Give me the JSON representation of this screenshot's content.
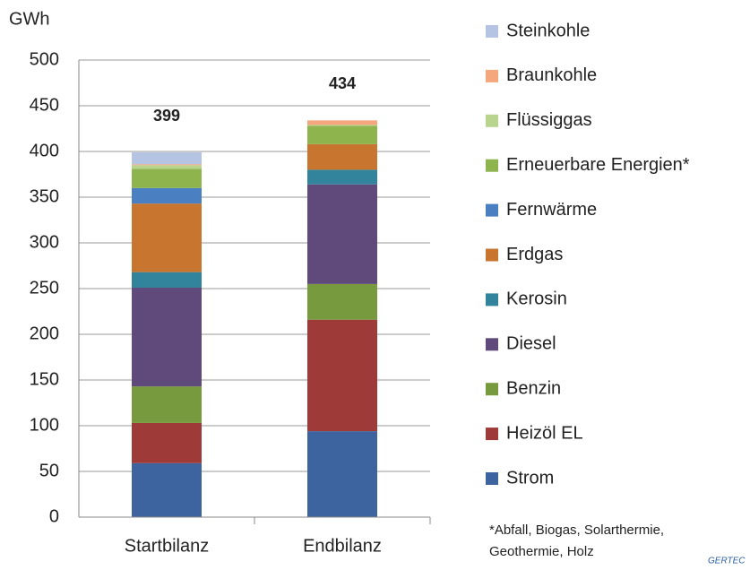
{
  "chart_data": {
    "type": "stacked_bar",
    "y_label": "GWh",
    "categories": [
      "Startbilanz",
      "Endbilanz"
    ],
    "series": [
      {
        "name": "Strom",
        "color": "#3e64a0",
        "values": [
          59,
          94
        ]
      },
      {
        "name": "Heizöl EL",
        "color": "#9e3a38",
        "values": [
          44,
          122
        ]
      },
      {
        "name": "Benzin",
        "color": "#779a3e",
        "values": [
          40,
          39
        ]
      },
      {
        "name": "Diesel",
        "color": "#60497b",
        "values": [
          108,
          109
        ]
      },
      {
        "name": "Kerosin",
        "color": "#31849b",
        "values": [
          17,
          16
        ]
      },
      {
        "name": "Erdgas",
        "color": "#c7752f",
        "values": [
          75,
          28
        ]
      },
      {
        "name": "Fernwärme",
        "color": "#4a7fc1",
        "values": [
          17,
          0
        ]
      },
      {
        "name": "Erneuerbare Energien*",
        "color": "#8eb44d",
        "values": [
          21,
          20
        ]
      },
      {
        "name": "Flüssiggas",
        "color": "#b9d48d",
        "values": [
          4,
          1
        ]
      },
      {
        "name": "Braunkohle",
        "color": "#f4a77c",
        "values": [
          1,
          5
        ]
      },
      {
        "name": "Steinkohle",
        "color": "#b5c4e2",
        "values": [
          13,
          0
        ]
      }
    ],
    "totals": [
      399,
      434
    ],
    "ylim": [
      0,
      500
    ],
    "yticks": [
      0,
      50,
      100,
      150,
      200,
      250,
      300,
      350,
      400,
      450,
      500
    ],
    "grid": true,
    "legend": "right",
    "footnote_lines": [
      "*Abfall, Biogas, Solarthermie,",
      "Geothermie, Holz"
    ],
    "logo": "GERTEC"
  }
}
